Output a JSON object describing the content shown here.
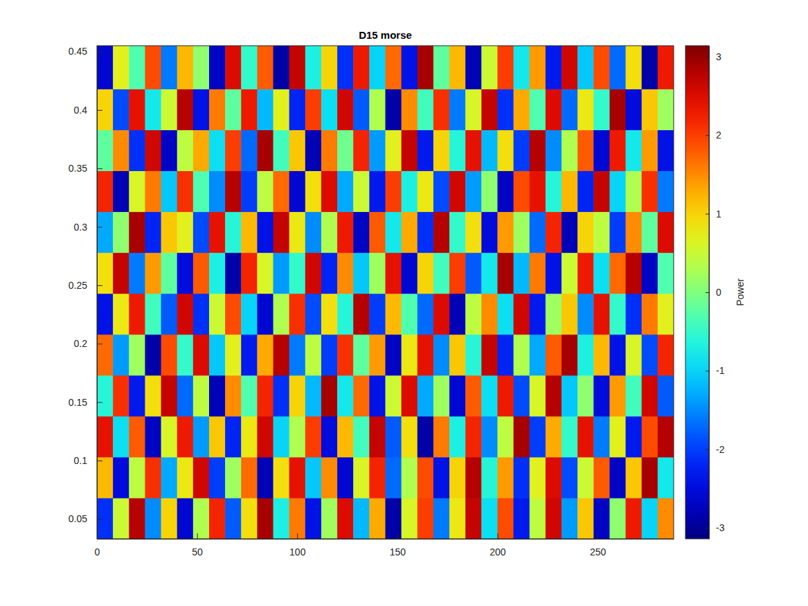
{
  "chart_data": {
    "type": "heatmap",
    "title": "D15 morse",
    "xlim": [
      0,
      288
    ],
    "xticks": [
      0,
      50,
      100,
      150,
      200,
      250
    ],
    "ylim": [
      0.033,
      0.455
    ],
    "yticks": [
      0.05,
      0.1,
      0.15,
      0.2,
      0.25,
      0.3,
      0.35,
      0.4,
      0.45
    ],
    "x_edges": [
      0,
      8,
      16,
      24,
      32,
      40,
      48,
      56,
      64,
      72,
      80,
      88,
      96,
      104,
      112,
      120,
      128,
      136,
      144,
      152,
      160,
      168,
      176,
      184,
      192,
      200,
      208,
      216,
      224,
      232,
      240,
      248,
      256,
      264,
      272,
      280,
      288
    ],
    "y_edges": [
      0.033,
      0.068,
      0.103,
      0.138,
      0.173,
      0.208,
      0.243,
      0.278,
      0.313,
      0.348,
      0.383,
      0.418,
      0.455
    ],
    "z": [
      [
        -2.1,
        0.5,
        2.8,
        -1.5,
        1.0,
        -2.6,
        0.3,
        2.2,
        -1.8,
        0.9,
        2.9,
        -0.7,
        1.6,
        -2.4,
        0.2,
        2.5,
        -1.2,
        1.3,
        -2.9,
        0.6,
        2.0,
        -1.6,
        0.8,
        2.7,
        -0.9,
        1.9,
        -2.3,
        0.4,
        2.6,
        -1.4,
        1.1,
        -2.7,
        0.1,
        2.3,
        -1.0,
        1.5
      ],
      [
        1.2,
        -2.5,
        0.4,
        2.1,
        -1.3,
        0.8,
        2.6,
        -2.0,
        0.2,
        1.7,
        -2.8,
        0.9,
        2.4,
        -1.1,
        1.5,
        -2.6,
        0.6,
        2.2,
        -1.7,
        0.3,
        1.9,
        -2.4,
        1.0,
        2.8,
        -0.6,
        1.4,
        -2.1,
        0.7,
        2.5,
        -1.9,
        0.5,
        1.8,
        -2.7,
        1.1,
        2.9,
        -0.8
      ],
      [
        2.4,
        -0.9,
        1.8,
        -2.7,
        0.6,
        2.3,
        -1.4,
        1.1,
        -2.2,
        0.8,
        2.6,
        -1.0,
        0.3,
        2.0,
        -2.5,
        1.2,
        -0.4,
        2.7,
        -1.8,
        0.9,
        -2.9,
        1.6,
        -0.7,
        2.2,
        -1.5,
        0.4,
        2.9,
        -2.0,
        1.3,
        -0.5,
        2.4,
        -1.6,
        0.7,
        -2.3,
        1.9,
        2.8
      ],
      [
        -0.6,
        2.1,
        -2.3,
        0.9,
        2.7,
        -1.7,
        0.4,
        -2.8,
        1.5,
        -0.3,
        2.2,
        -2.1,
        1.0,
        -1.2,
        2.9,
        -0.8,
        1.7,
        -2.4,
        0.5,
        2.5,
        -1.3,
        0.2,
        -2.6,
        1.8,
        -0.9,
        2.3,
        -1.9,
        0.6,
        2.8,
        -1.1,
        0.1,
        -2.5,
        1.4,
        -0.4,
        2.6,
        -1.8
      ],
      [
        1.7,
        -1.4,
        0.2,
        -2.9,
        1.9,
        -0.5,
        2.5,
        -1.1,
        0.7,
        -2.3,
        1.3,
        2.8,
        -1.6,
        0.4,
        -2.0,
        2.1,
        -0.2,
        1.4,
        -2.7,
        0.8,
        2.4,
        -1.5,
        1.1,
        -0.6,
        2.7,
        -2.2,
        0.3,
        -1.3,
        1.8,
        2.9,
        -0.7,
        1.2,
        -2.4,
        0.6,
        -1.9,
        2.2
      ],
      [
        -2.4,
        0.8,
        2.3,
        -0.4,
        -1.8,
        2.6,
        -2.1,
        0.5,
        1.9,
        -1.0,
        -2.6,
        0.3,
        2.1,
        -1.9,
        0.9,
        -0.6,
        2.8,
        -2.0,
        1.2,
        -0.3,
        -1.7,
        2.5,
        -2.8,
        0.4,
        1.5,
        -0.9,
        2.6,
        -2.3,
        0.2,
        1.1,
        -1.5,
        2.4,
        -0.5,
        -2.1,
        1.6,
        0.7
      ],
      [
        0.9,
        2.7,
        -1.6,
        1.4,
        -0.2,
        -2.5,
        1.8,
        -0.7,
        -2.9,
        2.2,
        0.6,
        -1.4,
        -0.5,
        2.6,
        -2.2,
        1.5,
        -1.1,
        0.2,
        2.4,
        -2.6,
        1.0,
        -0.4,
        2.0,
        -1.8,
        -0.8,
        2.9,
        -1.2,
        1.6,
        -2.4,
        0.5,
        2.3,
        -0.9,
        1.7,
        2.8,
        -2.7,
        -0.3
      ],
      [
        -1.3,
        0.1,
        2.9,
        -2.2,
        1.1,
        0.7,
        -1.9,
        2.4,
        -0.6,
        1.2,
        -2.4,
        2.7,
        0.8,
        -1.5,
        0.3,
        2.3,
        -2.7,
        1.8,
        -0.8,
        1.3,
        -2.1,
        2.8,
        -0.5,
        0.9,
        -2.5,
        1.4,
        0.2,
        -1.7,
        2.2,
        -2.8,
        1.0,
        0.4,
        -2.0,
        1.5,
        -0.2,
        2.5
      ],
      [
        2.2,
        -2.8,
        0.6,
        1.6,
        -1.1,
        2.1,
        -0.3,
        -1.5,
        2.8,
        -2.0,
        0.4,
        1.7,
        -2.6,
        0.9,
        2.5,
        -1.3,
        0.5,
        -2.3,
        2.0,
        -0.7,
        0.8,
        -1.9,
        2.6,
        -1.4,
        0.1,
        -2.7,
        1.9,
        2.4,
        -0.6,
        1.2,
        -2.2,
        2.7,
        -1.0,
        0.3,
        2.1,
        -1.6
      ],
      [
        -0.2,
        1.5,
        -2.1,
        2.6,
        -2.7,
        0.4,
        1.3,
        -0.9,
        2.0,
        -1.7,
        2.9,
        -0.4,
        1.1,
        -2.8,
        1.6,
        -0.1,
        2.2,
        -1.4,
        0.7,
        2.7,
        -2.3,
        1.0,
        -0.6,
        2.4,
        -1.2,
        0.9,
        -2.0,
        2.8,
        -1.5,
        0.3,
        1.8,
        -2.6,
        2.3,
        -0.8,
        1.4,
        -2.4
      ],
      [
        1.0,
        -1.9,
        2.4,
        -0.8,
        0.5,
        2.8,
        -2.4,
        1.6,
        -0.2,
        2.3,
        -1.2,
        0.7,
        -2.2,
        2.0,
        -0.9,
        2.6,
        -1.8,
        0.3,
        -2.9,
        1.5,
        -0.4,
        2.1,
        -1.6,
        0.6,
        2.7,
        -2.1,
        1.3,
        -0.3,
        2.5,
        -1.7,
        0.8,
        -0.5,
        2.9,
        -2.5,
        1.1,
        0.2
      ],
      [
        -2.6,
        0.7,
        -0.3,
        1.9,
        -1.6,
        1.2,
        0.1,
        -2.7,
        2.5,
        -0.5,
        1.8,
        -2.9,
        2.7,
        -0.7,
        1.0,
        -2.1,
        2.3,
        -1.0,
        1.7,
        -2.4,
        2.9,
        -0.2,
        1.2,
        -2.8,
        0.5,
        2.0,
        -0.8,
        1.4,
        -2.3,
        2.6,
        -1.1,
        1.9,
        -1.7,
        0.9,
        -2.9,
        2.3
      ]
    ],
    "colorbar_lim": [
      -3.14,
      3.14
    ],
    "colorbar_ticks": [
      -3,
      -2,
      -1,
      0,
      1,
      2,
      3
    ],
    "colorbar_label": "Power"
  }
}
